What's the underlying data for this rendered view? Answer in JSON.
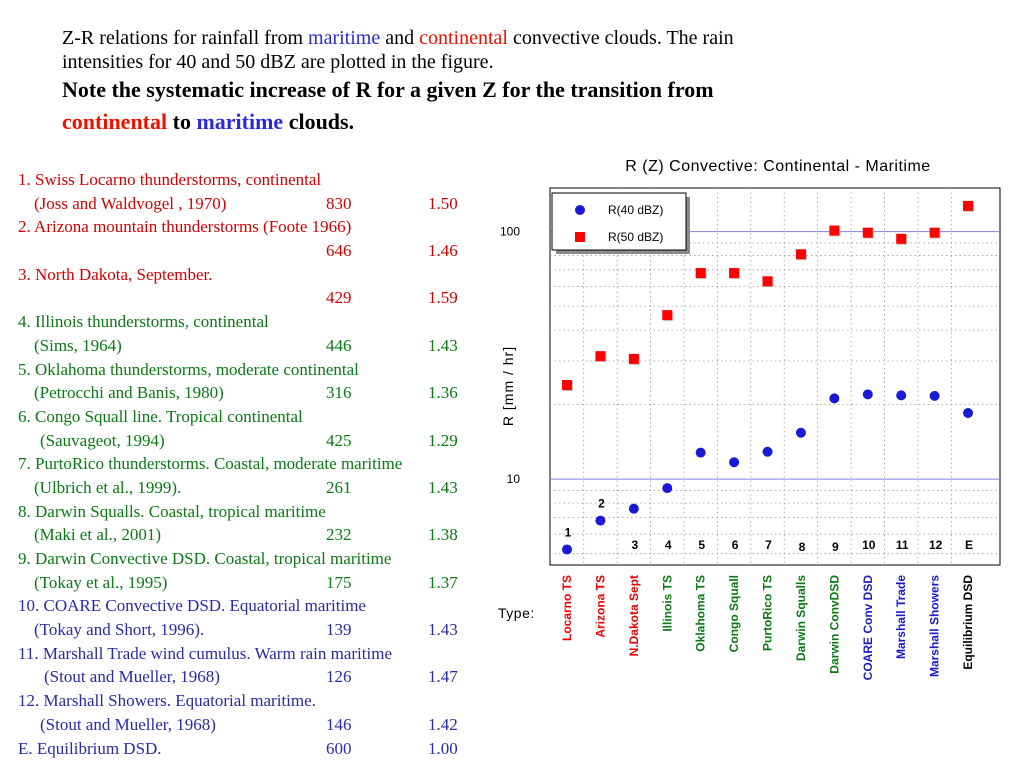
{
  "header": {
    "line1": [
      "Z-R relations for rainfall from ",
      "maritime",
      " and ",
      "continental",
      " convective clouds. The rain"
    ],
    "line2": "intensities for 40 and 50 dBZ are plotted in the figure.",
    "line3": "Note the systematic increase of R for a given Z for the transition from",
    "line4": [
      "continental",
      " to ",
      "maritime",
      " clouds."
    ]
  },
  "colors": {
    "maritime": "#2b2bd6",
    "continental": "#ee1100",
    "series40": "#1a1ad6",
    "series50": "#ff0000",
    "refline": "#8080e0"
  },
  "list": [
    {
      "title": "1. Swiss Locarno thunderstorms, continental",
      "ref": "(Joss and Waldvogel , 1970)",
      "z": "830",
      "b": "1.50",
      "color": "red",
      "indent": 1
    },
    {
      "title": "2. Arizona mountain thunderstorms (Foote 1966)",
      "ref": "",
      "z": "646",
      "b": "1.46",
      "color": "red",
      "indent": 1
    },
    {
      "title": "3. North Dakota, September.",
      "ref": "",
      "z": "429",
      "b": "1.59",
      "color": "red",
      "indent": 1
    },
    {
      "title": "4. Illinois thunderstorms, continental",
      "ref": "(Sims, 1964)",
      "z": "446",
      "b": "1.43",
      "color": "green",
      "indent": 1
    },
    {
      "title": "5. Oklahoma thunderstorms, moderate continental",
      "ref": "(Petrocchi and Banis, 1980)",
      "z": "316",
      "b": "1.36",
      "color": "green",
      "indent": 1
    },
    {
      "title": "6. Congo Squall line. Tropical continental",
      "ref": "(Sauvageot, 1994)",
      "z": "425",
      "b": "1.29",
      "color": "green",
      "indent": 2
    },
    {
      "title": "7. PurtoRico thunderstorms. Coastal, moderate maritime",
      "ref": "(Ulbrich et al., 1999).",
      "z": "261",
      "b": "1.43",
      "color": "green",
      "indent": 1
    },
    {
      "title": "8. Darwin Squalls. Coastal, tropical maritime",
      "ref": "(Maki et al., 2001)",
      "z": "232",
      "b": "1.38",
      "color": "green",
      "indent": 1
    },
    {
      "title": "9. Darwin Convective DSD. Coastal, tropical maritime",
      "ref": "(Tokay et al., 1995)",
      "z": "175",
      "b": "1.37",
      "color": "green",
      "indent": 1
    },
    {
      "title": "10. COARE Convective DSD. Equatorial maritime",
      "ref": "(Tokay and Short, 1996).",
      "z": "139",
      "b": "1.43",
      "color": "blue",
      "indent": 1
    },
    {
      "title": "11. Marshall Trade wind cumulus. Warm rain maritime",
      "ref": "(Stout and Mueller, 1968)",
      "z": "126",
      "b": "1.47",
      "color": "blue",
      "indent": 3
    },
    {
      "title": "12. Marshall Showers. Equatorial maritime.",
      "ref": "(Stout and Mueller, 1968)",
      "z": "146",
      "b": "1.42",
      "color": "blue",
      "indent": 2
    },
    {
      "title": "",
      "ref": "E. Equilibrium DSD.",
      "z": "600",
      "b": "1.00",
      "color": "blue",
      "indent": 0
    }
  ],
  "chart_data": {
    "type": "scatter",
    "title": "R (Z)  Convective: Continental - Maritime",
    "ylabel": "R [mm / hr]",
    "xlabel": "Type:",
    "yscale": "log",
    "ylim": [
      4.5,
      150
    ],
    "yticks": [
      "10",
      "100"
    ],
    "categories": [
      "1",
      "2",
      "3",
      "4",
      "5",
      "6",
      "7",
      "8",
      "9",
      "10",
      "11",
      "12",
      "E"
    ],
    "type_names": [
      "Locarno TS",
      "Arizona TS",
      "N.Dakota Sept",
      "Illinois TS",
      "Oklahoma TS",
      "Congo Squall",
      "PurtoRico TS",
      "Darwin Squalls",
      "Darwin ConvDSD",
      "COARE Conv DSD",
      "Marshall Trade",
      "Marshall Showers",
      "Equilibrium DSD"
    ],
    "type_colors": [
      "#ee0000",
      "#ee0000",
      "#ee0000",
      "#0a7a12",
      "#0a7a12",
      "#0a7a12",
      "#0a7a12",
      "#0a7a12",
      "#0a7a12",
      "#1a1acc",
      "#1a1acc",
      "#1a1acc",
      "#000000"
    ],
    "series": [
      {
        "name": "R(40 dBZ)",
        "marker": "circle",
        "values": [
          5.2,
          6.8,
          7.6,
          9.2,
          12.8,
          11.7,
          12.9,
          15.4,
          21.2,
          22.0,
          21.8,
          21.7,
          18.5
        ]
      },
      {
        "name": "R(50 dBZ)",
        "marker": "square",
        "values": [
          24.0,
          31.4,
          30.6,
          46.0,
          68.0,
          68.0,
          63.0,
          81.0,
          101.0,
          99.0,
          93.5,
          99.0,
          127.0
        ]
      }
    ],
    "legend": "top-left"
  }
}
